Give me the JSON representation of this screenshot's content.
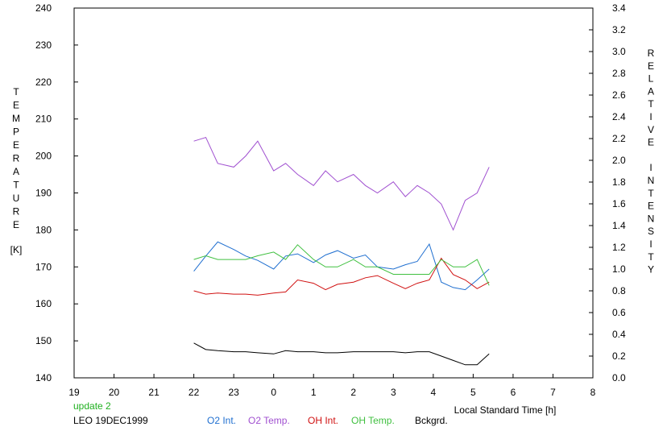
{
  "chart_data": {
    "type": "line",
    "title": "",
    "xlabel": "Local Standard Time [h]",
    "ylabel_left": "TEMPERATURE",
    "ylabel_left_unit": "[K]",
    "ylabel_right": "RELATIVE INTENSITY",
    "xlim": [
      19,
      8
    ],
    "x_ticks": [
      "19",
      "20",
      "21",
      "22",
      "23",
      "0",
      "1",
      "2",
      "3",
      "4",
      "5",
      "6",
      "7",
      "8"
    ],
    "y_left_lim": [
      140,
      240
    ],
    "y_left_ticks": [
      "140",
      "150",
      "160",
      "170",
      "180",
      "190",
      "200",
      "210",
      "220",
      "230",
      "240"
    ],
    "y_right_lim": [
      0.0,
      3.4
    ],
    "y_right_ticks": [
      "0.0",
      "0.2",
      "0.4",
      "0.6",
      "0.8",
      "1.0",
      "1.2",
      "1.4",
      "1.6",
      "1.8",
      "2.0",
      "2.2",
      "2.4",
      "2.6",
      "2.8",
      "3.0",
      "3.2",
      "3.4"
    ],
    "grid": false,
    "legend_position": "bottom",
    "update_text": "update 2",
    "station_text": "LEO 19DEC1999",
    "colors": {
      "o2_int": "#1f6fd0",
      "o2_temp": "#a050d0",
      "oh_int": "#d01010",
      "oh_temp": "#40c040",
      "bckgrd": "#000000",
      "update": "#20b020"
    },
    "series": [
      {
        "name": "O2 Int.",
        "axis": "right",
        "color": "#1f6fd0",
        "x": [
          22.0,
          22.3,
          22.6,
          23.0,
          23.3,
          23.6,
          0.0,
          0.3,
          0.6,
          1.0,
          1.3,
          1.6,
          2.0,
          2.3,
          2.6,
          3.0,
          3.3,
          3.6,
          3.9,
          4.2,
          4.5,
          4.8,
          5.1,
          5.4
        ],
        "y": [
          0.98,
          1.12,
          1.25,
          1.18,
          1.12,
          1.08,
          1.0,
          1.12,
          1.14,
          1.06,
          1.13,
          1.17,
          1.1,
          1.13,
          1.02,
          1.0,
          1.04,
          1.07,
          1.23,
          0.88,
          0.83,
          0.81,
          0.9,
          1.0
        ]
      },
      {
        "name": "O2 Temp.",
        "axis": "left",
        "color": "#a050d0",
        "x": [
          22.0,
          22.3,
          22.6,
          23.0,
          23.3,
          23.6,
          0.0,
          0.3,
          0.6,
          1.0,
          1.3,
          1.6,
          2.0,
          2.3,
          2.6,
          3.0,
          3.3,
          3.6,
          3.9,
          4.2,
          4.5,
          4.8,
          5.1,
          5.4
        ],
        "y": [
          204,
          205,
          198,
          197,
          200,
          204,
          196,
          198,
          195,
          192,
          196,
          193,
          195,
          192,
          190,
          193,
          189,
          192,
          190,
          187,
          180,
          188,
          190,
          197
        ]
      },
      {
        "name": "OH Int.",
        "axis": "right",
        "color": "#d01010",
        "x": [
          22.0,
          22.3,
          22.6,
          23.0,
          23.3,
          23.6,
          0.0,
          0.3,
          0.6,
          1.0,
          1.3,
          1.6,
          2.0,
          2.3,
          2.6,
          3.0,
          3.3,
          3.6,
          3.9,
          4.2,
          4.5,
          4.8,
          5.1,
          5.4
        ],
        "y": [
          0.8,
          0.77,
          0.78,
          0.77,
          0.77,
          0.76,
          0.78,
          0.79,
          0.9,
          0.87,
          0.81,
          0.86,
          0.88,
          0.92,
          0.94,
          0.87,
          0.82,
          0.87,
          0.9,
          1.1,
          0.95,
          0.9,
          0.82,
          0.88
        ]
      },
      {
        "name": "OH Temp.",
        "axis": "left",
        "color": "#40c040",
        "x": [
          22.0,
          22.3,
          22.6,
          23.0,
          23.3,
          23.6,
          0.0,
          0.3,
          0.6,
          1.0,
          1.3,
          1.6,
          2.0,
          2.3,
          2.6,
          3.0,
          3.3,
          3.6,
          3.9,
          4.2,
          4.5,
          4.8,
          5.1,
          5.4
        ],
        "y": [
          172,
          173,
          172,
          172,
          172,
          173,
          174,
          172,
          176,
          172,
          170,
          170,
          172,
          170,
          170,
          168,
          168,
          168,
          168,
          172,
          170,
          170,
          172,
          165
        ]
      },
      {
        "name": "Bckgrd.",
        "axis": "right",
        "color": "#000000",
        "x": [
          22.0,
          22.3,
          22.6,
          23.0,
          23.3,
          23.6,
          0.0,
          0.3,
          0.6,
          1.0,
          1.3,
          1.6,
          2.0,
          2.3,
          2.6,
          3.0,
          3.3,
          3.6,
          3.9,
          4.2,
          4.5,
          4.8,
          5.1,
          5.4
        ],
        "y": [
          0.32,
          0.26,
          0.25,
          0.24,
          0.24,
          0.23,
          0.22,
          0.25,
          0.24,
          0.24,
          0.23,
          0.23,
          0.24,
          0.24,
          0.24,
          0.24,
          0.23,
          0.24,
          0.24,
          0.2,
          0.16,
          0.12,
          0.12,
          0.22
        ]
      }
    ]
  }
}
